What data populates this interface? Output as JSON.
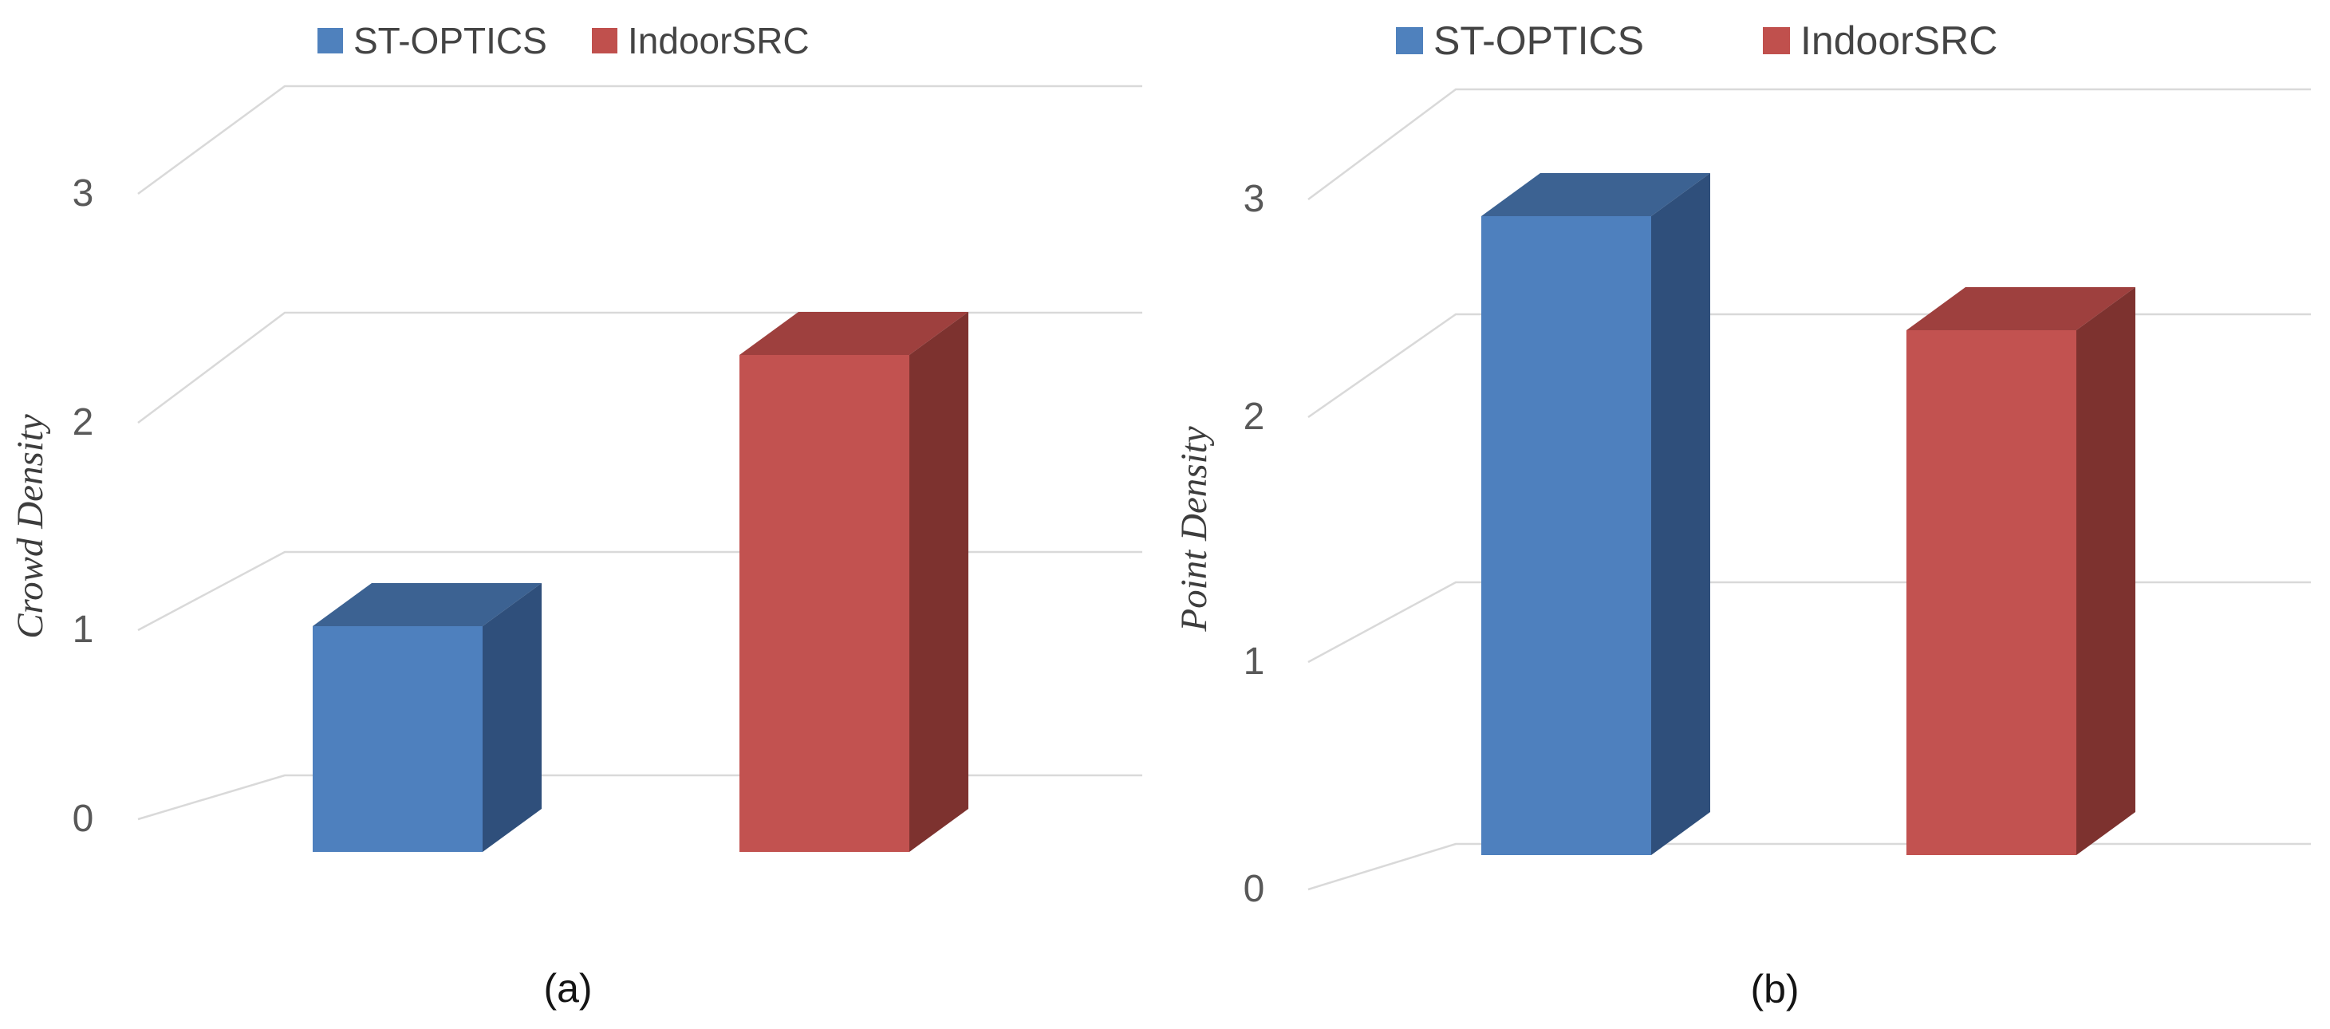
{
  "figure": {
    "panel_count": 2,
    "background": "#ffffff"
  },
  "chart_data": [
    {
      "type": "bar",
      "projection": "3d",
      "caption": "(a)",
      "title": "",
      "xlabel": "",
      "ylabel": "Crowd Density",
      "categories": [
        ""
      ],
      "ylim": [
        0,
        3
      ],
      "yticks": [
        0,
        1,
        2,
        3
      ],
      "ytick_labels": [
        "0",
        "1",
        "2",
        "3"
      ],
      "grid": true,
      "legend_position": "top",
      "series": [
        {
          "name": "ST-OPTICS",
          "values": [
            1.0
          ],
          "color": "#4f81bd",
          "color_key": "st_optics"
        },
        {
          "name": "IndoorSRC",
          "values": [
            2.2
          ],
          "color": "#c0504d",
          "color_key": "indoor_src"
        }
      ]
    },
    {
      "type": "bar",
      "projection": "3d",
      "caption": "(b)",
      "title": "",
      "xlabel": "",
      "ylabel": "Point Density",
      "categories": [
        ""
      ],
      "ylim": [
        0,
        3
      ],
      "yticks": [
        0,
        1,
        2,
        3
      ],
      "ytick_labels": [
        "0",
        "1",
        "2",
        "3"
      ],
      "grid": true,
      "legend_position": "top",
      "series": [
        {
          "name": "ST-OPTICS",
          "values": [
            2.8
          ],
          "color": "#4f81bd",
          "color_key": "st_optics"
        },
        {
          "name": "IndoorSRC",
          "values": [
            2.3
          ],
          "color": "#c0504d",
          "color_key": "indoor_src"
        }
      ]
    }
  ],
  "colors": {
    "st_optics": {
      "legend": "#4f81bd",
      "front": "#4e80be",
      "top": "#3c6292",
      "side": "#2f4f7b"
    },
    "indoor_src": {
      "legend": "#c0504d",
      "front": "#c25250",
      "top": "#9e403e",
      "side": "#7d322f"
    },
    "gridline": "#d9d9d9",
    "tick_text": "#595959",
    "legend_text": "#444444",
    "axis_label_text": "#3d3d3d",
    "caption_text": "#141414"
  }
}
